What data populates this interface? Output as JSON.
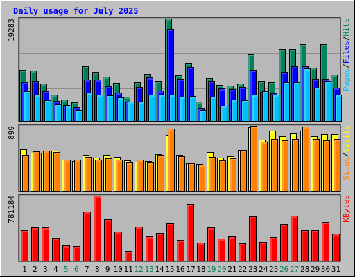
{
  "chart_data": [
    {
      "type": "bar",
      "title": "Daily usage for July 2025",
      "panel": "hits-files-pages",
      "categories": [
        "1",
        "2",
        "3",
        "4",
        "5",
        "6",
        "7",
        "8",
        "9",
        "10",
        "11",
        "12",
        "13",
        "14",
        "15",
        "16",
        "17",
        "18",
        "19",
        "20",
        "21",
        "22",
        "23",
        "24",
        "25",
        "26",
        "27",
        "28",
        "29",
        "30",
        "31"
      ],
      "weekend_days": [
        "5",
        "6",
        "12",
        "13",
        "19",
        "20",
        "26",
        "27"
      ],
      "ylabel_max": "19283",
      "ylim": [
        0,
        19283
      ],
      "legend": [
        "Pages",
        "Files",
        "Hits"
      ],
      "series": [
        {
          "name": "Hits",
          "color": "#00805c",
          "values": [
            9600,
            9500,
            7000,
            5000,
            4000,
            3500,
            10300,
            9200,
            8300,
            7200,
            4600,
            7300,
            8800,
            7600,
            19283,
            8600,
            11000,
            3600,
            8100,
            6800,
            6700,
            7100,
            12600,
            7600,
            7300,
            13500,
            13600,
            14500,
            10000,
            14500,
            8700
          ]
        },
        {
          "name": "Files",
          "color": "#0000ff",
          "values": [
            7300,
            7600,
            5600,
            3800,
            3000,
            2600,
            7800,
            7800,
            6500,
            5400,
            3600,
            6400,
            8200,
            5700,
            17300,
            8000,
            10200,
            2500,
            7600,
            6100,
            6000,
            6400,
            9600,
            5500,
            5200,
            9200,
            10300,
            10300,
            7900,
            8000,
            6300
          ]
        },
        {
          "name": "Pages",
          "color": "#00c0ff",
          "values": [
            5600,
            4900,
            3900,
            3100,
            2900,
            2100,
            5400,
            4900,
            4800,
            4400,
            3600,
            3600,
            4900,
            4900,
            4900,
            4600,
            4700,
            2100,
            4600,
            2900,
            4100,
            3900,
            4900,
            5600,
            4900,
            7300,
            7300,
            9900,
            6200,
            7500,
            4900
          ]
        }
      ]
    },
    {
      "type": "bar",
      "panel": "visits-sites",
      "categories": [
        "1",
        "2",
        "3",
        "4",
        "5",
        "6",
        "7",
        "8",
        "9",
        "10",
        "11",
        "12",
        "13",
        "14",
        "15",
        "16",
        "17",
        "18",
        "19",
        "20",
        "21",
        "22",
        "23",
        "24",
        "25",
        "26",
        "27",
        "28",
        "29",
        "30",
        "31"
      ],
      "ylabel_max": "899",
      "ylim": [
        0,
        899
      ],
      "legend": [
        "Sites",
        "Visits"
      ],
      "series": [
        {
          "name": "Visits",
          "color": "#ffff00",
          "values": [
            575,
            525,
            525,
            550,
            430,
            410,
            500,
            460,
            500,
            470,
            420,
            405,
            415,
            510,
            770,
            500,
            380,
            370,
            540,
            460,
            480,
            565,
            880,
            710,
            830,
            760,
            790,
            830,
            760,
            780,
            785
          ]
        },
        {
          "name": "Sites",
          "color": "#ff8000",
          "values": [
            500,
            545,
            555,
            540,
            435,
            435,
            465,
            435,
            450,
            435,
            390,
            430,
            390,
            495,
            860,
            475,
            385,
            360,
            465,
            425,
            450,
            560,
            898,
            680,
            720,
            700,
            720,
            890,
            720,
            700,
            720
          ]
        }
      ]
    },
    {
      "type": "bar",
      "panel": "kbytes",
      "categories": [
        "1",
        "2",
        "3",
        "4",
        "5",
        "6",
        "7",
        "8",
        "9",
        "10",
        "11",
        "12",
        "13",
        "14",
        "15",
        "16",
        "17",
        "18",
        "19",
        "20",
        "21",
        "22",
        "23",
        "24",
        "25",
        "26",
        "27",
        "28",
        "29",
        "30",
        "31"
      ],
      "ylabel_max": "781184",
      "ylim": [
        0,
        781184
      ],
      "legend": [
        "KBytes"
      ],
      "series": [
        {
          "name": "KBytes",
          "color": "#ff0000",
          "values": [
            365000,
            397000,
            397000,
            271000,
            180000,
            171000,
            593000,
            781184,
            495000,
            347000,
            119000,
            406000,
            291000,
            329000,
            451000,
            253000,
            678000,
            216000,
            401000,
            262000,
            291000,
            208000,
            535000,
            222000,
            285000,
            437000,
            537000,
            365000,
            365000,
            463000,
            323000
          ]
        }
      ]
    }
  ]
}
